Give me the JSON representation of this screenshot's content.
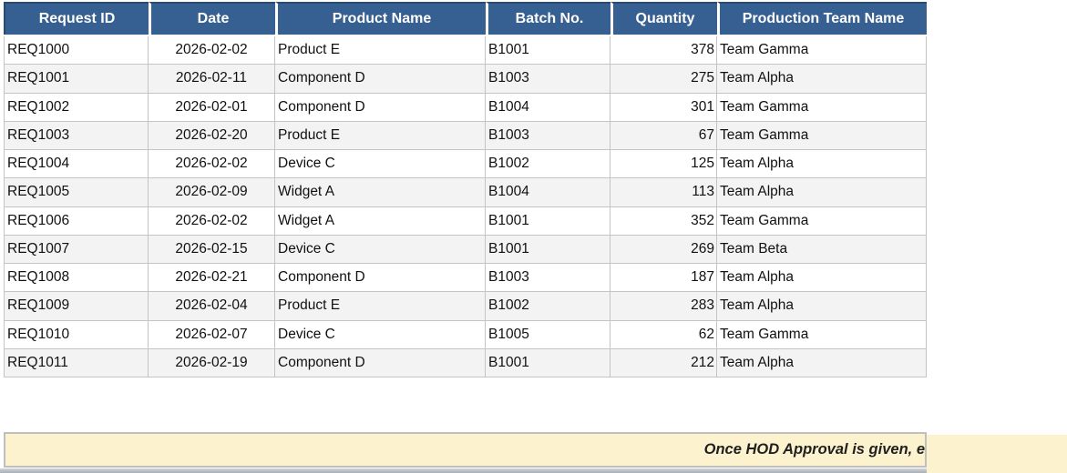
{
  "table": {
    "headers": [
      "Request ID",
      "Date",
      "Product Name",
      "Batch No.",
      "Quantity",
      "Production Team Name"
    ],
    "rows": [
      [
        "REQ1000",
        "2026-02-02",
        "Product E",
        "B1001",
        "378",
        "Team Gamma"
      ],
      [
        "REQ1001",
        "2026-02-11",
        "Component D",
        "B1003",
        "275",
        "Team Alpha"
      ],
      [
        "REQ1002",
        "2026-02-01",
        "Component D",
        "B1004",
        "301",
        "Team Gamma"
      ],
      [
        "REQ1003",
        "2026-02-20",
        "Product E",
        "B1003",
        "67",
        "Team Gamma"
      ],
      [
        "REQ1004",
        "2026-02-02",
        "Device C",
        "B1002",
        "125",
        "Team Alpha"
      ],
      [
        "REQ1005",
        "2026-02-09",
        "Widget A",
        "B1004",
        "113",
        "Team Alpha"
      ],
      [
        "REQ1006",
        "2026-02-02",
        "Widget A",
        "B1001",
        "352",
        "Team Gamma"
      ],
      [
        "REQ1007",
        "2026-02-15",
        "Device C",
        "B1001",
        "269",
        "Team Beta"
      ],
      [
        "REQ1008",
        "2026-02-21",
        "Component D",
        "B1003",
        "187",
        "Team Alpha"
      ],
      [
        "REQ1009",
        "2026-02-04",
        "Product E",
        "B1002",
        "283",
        "Team Alpha"
      ],
      [
        "REQ1010",
        "2026-02-07",
        "Device C",
        "B1005",
        "62",
        "Team Gamma"
      ],
      [
        "REQ1011",
        "2026-02-19",
        "Component D",
        "B1001",
        "212",
        "Team Alpha"
      ]
    ]
  },
  "banner": {
    "text": "Once HOD Approval is given, e"
  },
  "colors": {
    "header_bg": "#376092",
    "header_border_dark": "#2B4A70",
    "header_text": "#FFFFFF",
    "row_alt_bg": "#F3F3F3",
    "grid_border": "#C4C4C4",
    "banner_bg": "#FDF2CE",
    "banner_border": "#BFBFBF",
    "bottom_strip_gray": "#B8BDC4"
  }
}
